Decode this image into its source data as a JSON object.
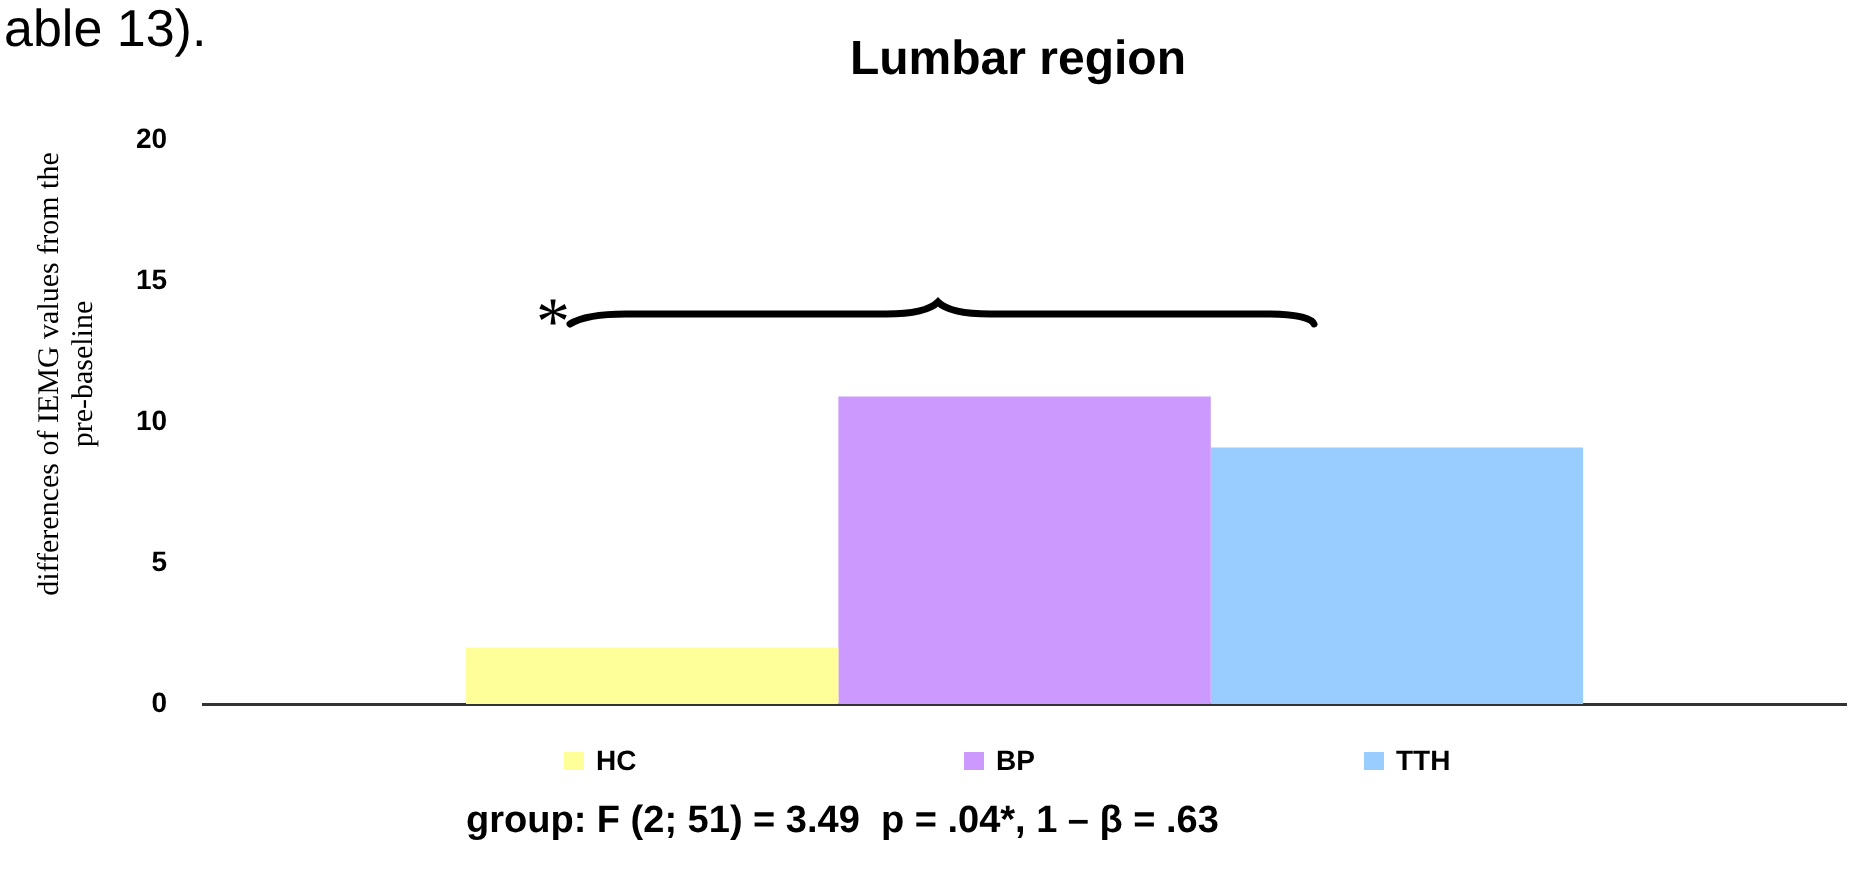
{
  "chart_data": {
    "type": "bar",
    "title": "Lumbar region",
    "ylabel": "differences of IEMG values from the pre-baseline",
    "categories": [
      null
    ],
    "series": [
      {
        "name": "HC",
        "color": "#ffff99",
        "values": [
          2.0
        ]
      },
      {
        "name": "BP",
        "color": "#cc99ff",
        "values": [
          10.9
        ]
      },
      {
        "name": "TTH",
        "color": "#99ccff",
        "values": [
          9.1
        ]
      }
    ],
    "ylim": [
      0,
      20
    ],
    "yticks": [
      0,
      5,
      10,
      15,
      20
    ],
    "legend": "bottom",
    "annotations": [
      "able 13).",
      "*",
      "group: F (2; 51) = 3.49  p = .04*, 1 – β = .63"
    ]
  }
}
